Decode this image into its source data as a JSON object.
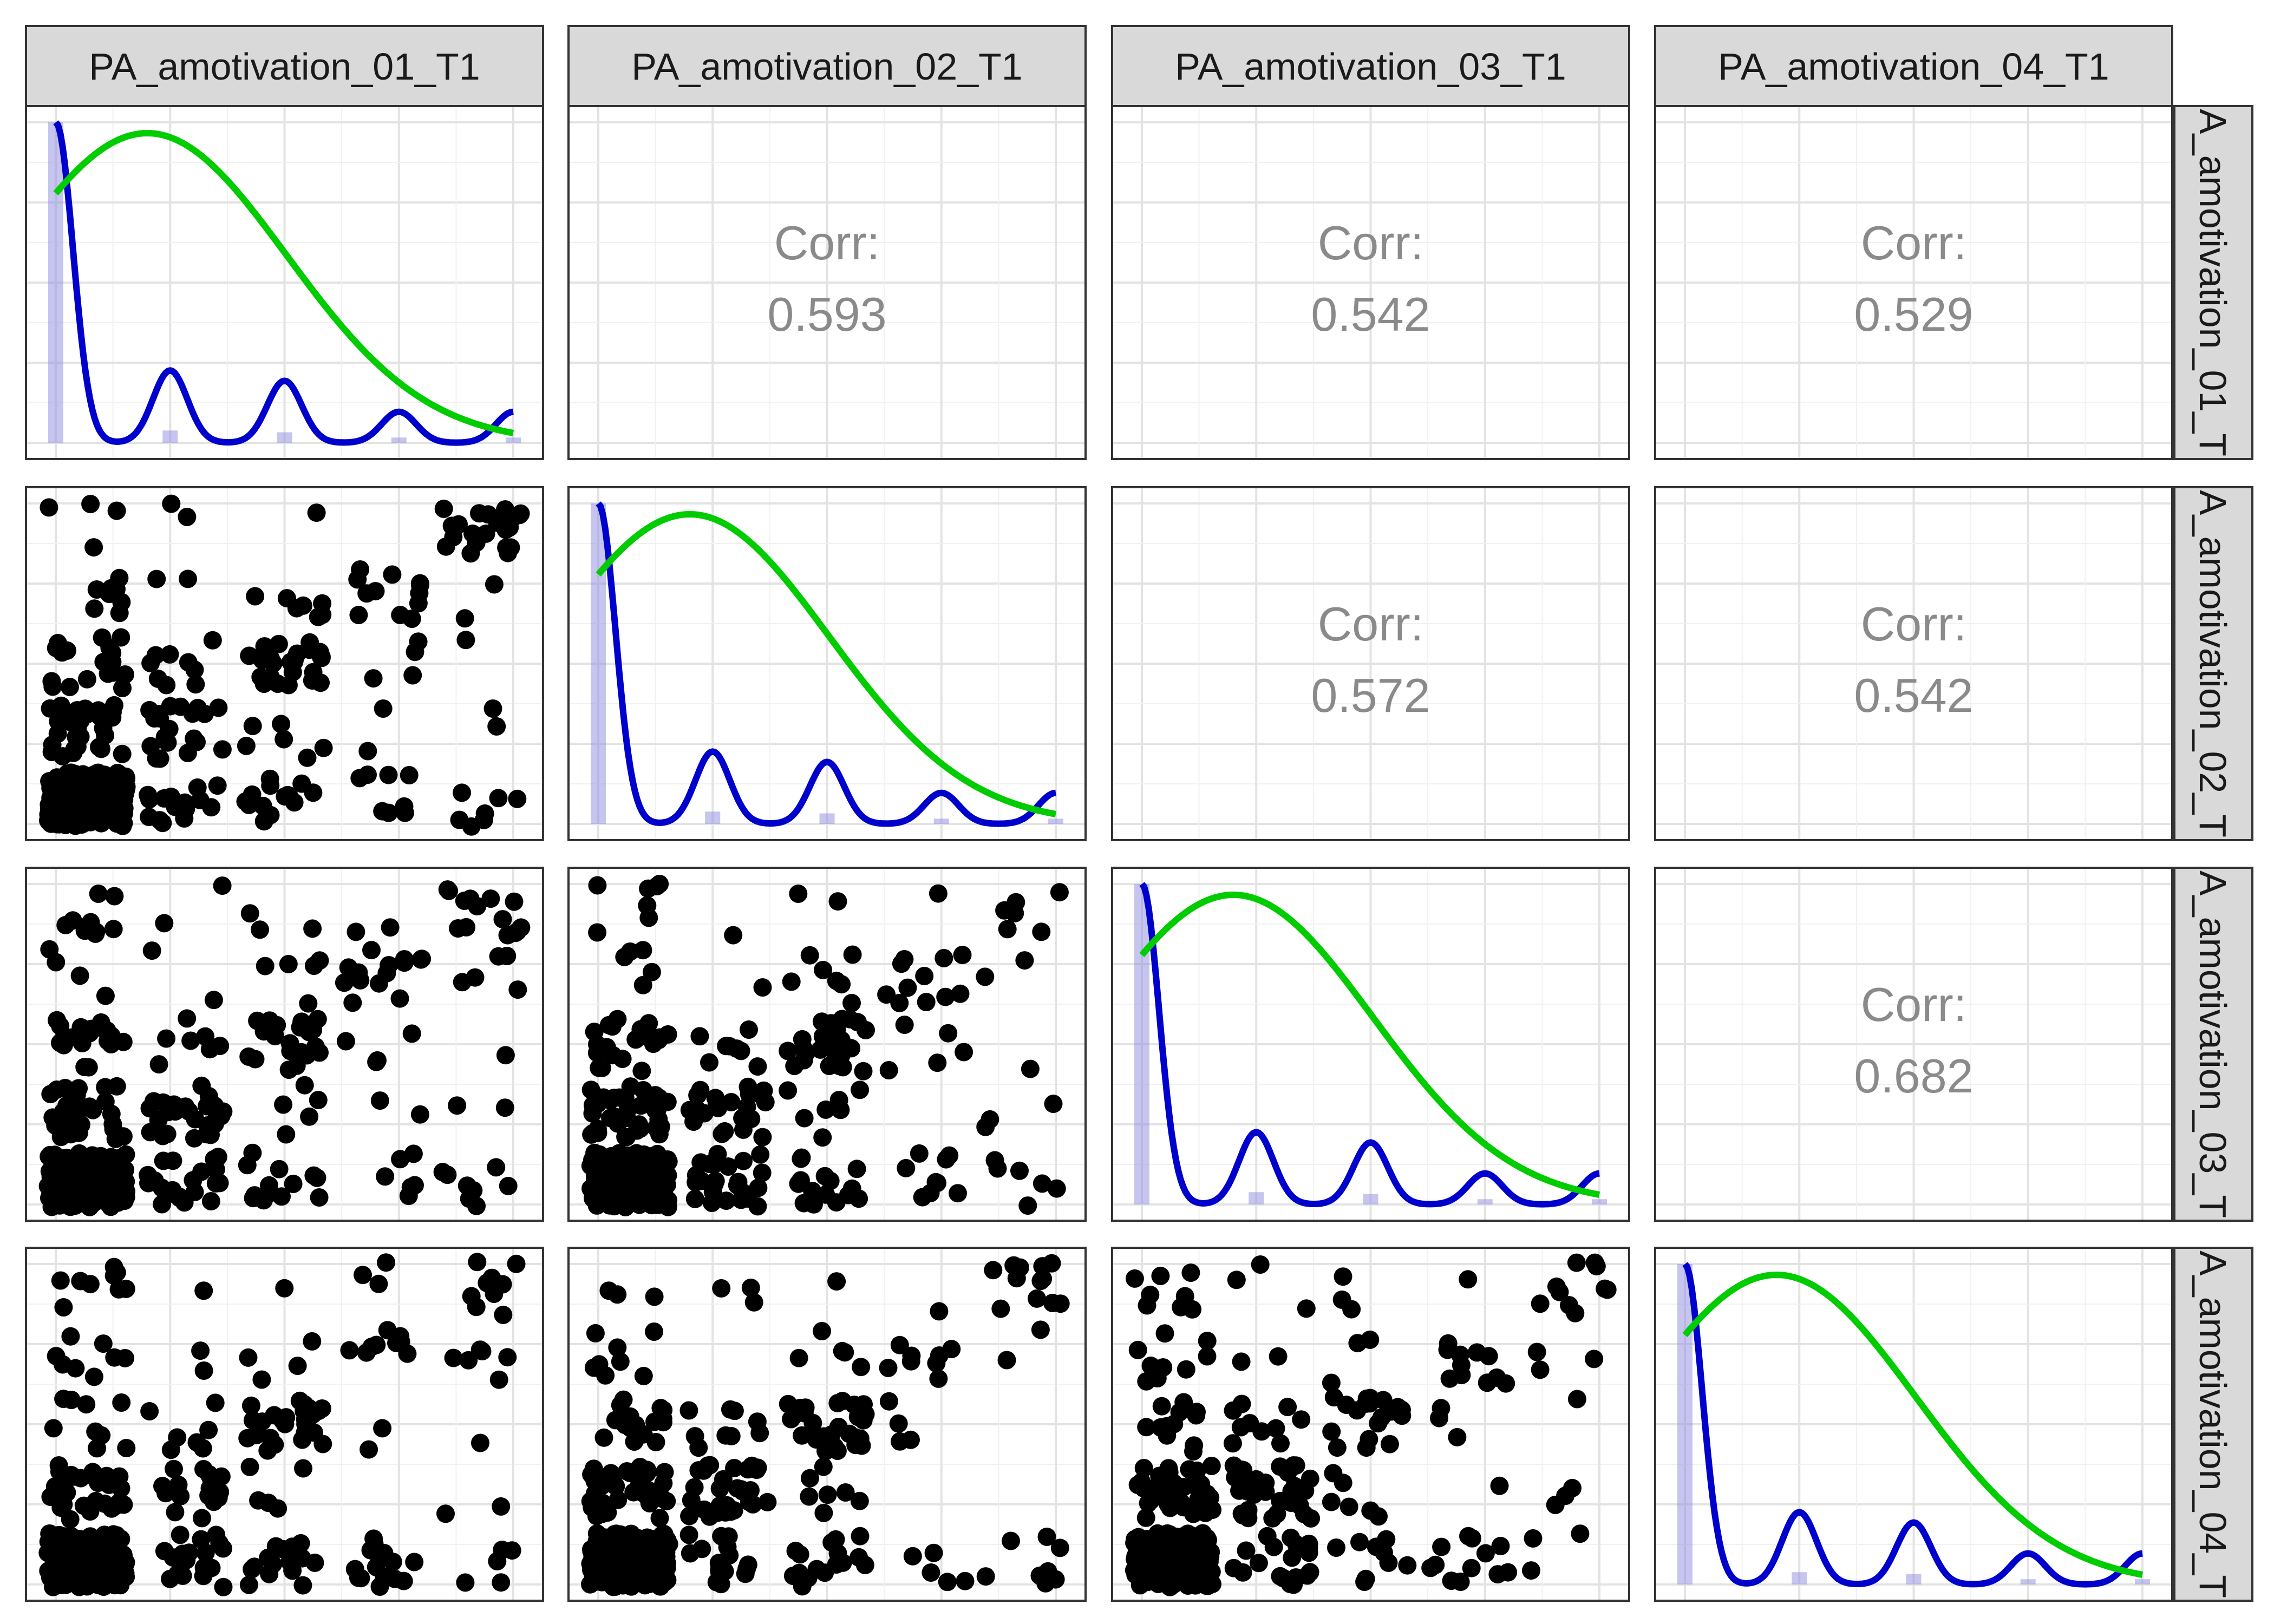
{
  "chart_data": {
    "type": "scatter-matrix",
    "variables": [
      "PA_amotivation_01_T1",
      "PA_amotivation_02_T1",
      "PA_amotivation_03_T1",
      "PA_amotivation_04_T1"
    ],
    "row_strip_labels": [
      "A_amotivation_01_T",
      "A_amotivation_02_T",
      "A_amotivation_03_T",
      "A_amotivation_04_T"
    ],
    "corr_label": "Corr:",
    "correlations": [
      {
        "row": 0,
        "col": 1,
        "value": "0.593"
      },
      {
        "row": 0,
        "col": 2,
        "value": "0.542"
      },
      {
        "row": 0,
        "col": 3,
        "value": "0.529"
      },
      {
        "row": 1,
        "col": 2,
        "value": "0.572"
      },
      {
        "row": 1,
        "col": 3,
        "value": "0.542"
      },
      {
        "row": 2,
        "col": 3,
        "value": "0.682"
      }
    ],
    "value_range": [
      1,
      5
    ],
    "level_shares": [
      0.62,
      0.14,
      0.12,
      0.06,
      0.06
    ],
    "grid": true,
    "diagonal": {
      "histogram_color": "#8c8ce0",
      "empirical_density_color": "#0000cc",
      "normal_density_color": "#00cc00"
    },
    "point_color": "#000000"
  }
}
